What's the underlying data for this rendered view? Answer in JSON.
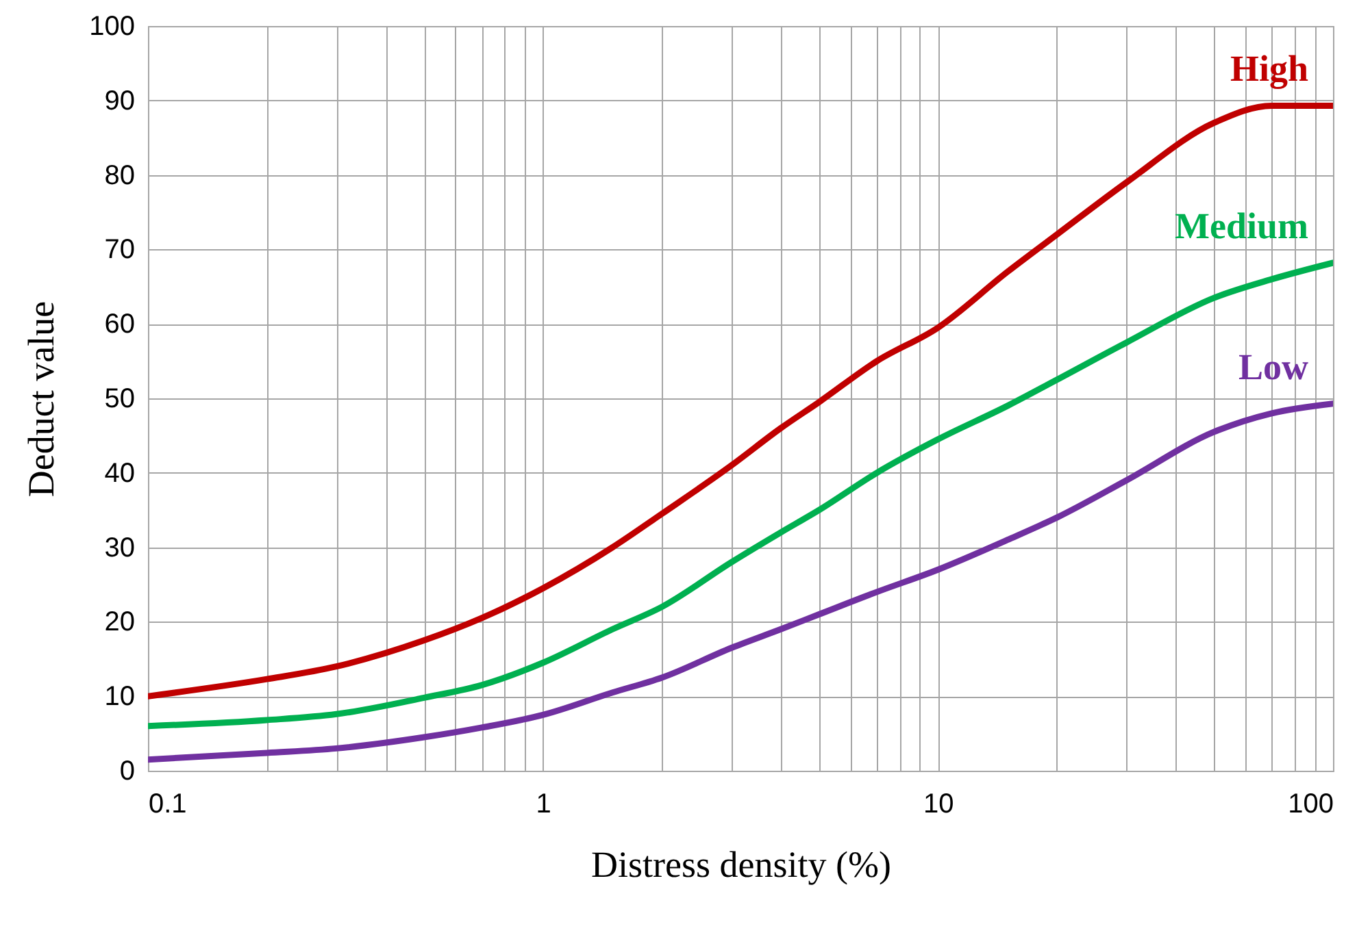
{
  "chart_data": {
    "type": "line",
    "xlabel": "Distress density (%)",
    "ylabel": "Deduct value",
    "log": "x",
    "grid": true,
    "line_style": "solid",
    "marker": "none",
    "xlim": [
      0.1,
      100
    ],
    "ylim": [
      0,
      100
    ],
    "xticks": [
      0.1,
      {
        "value": 0.2,
        "label": null
      },
      {
        "value": 0.3,
        "label": null
      },
      {
        "value": 0.4,
        "label": null
      },
      {
        "value": 0.5,
        "label": null
      },
      {
        "value": 0.6,
        "label": null
      },
      {
        "value": 0.7,
        "label": null
      },
      {
        "value": 0.8,
        "label": null
      },
      {
        "value": 0.9,
        "label": null
      },
      1,
      {
        "value": 2,
        "label": null
      },
      {
        "value": 3,
        "label": null
      },
      {
        "value": 4,
        "label": null
      },
      {
        "value": 5,
        "label": null
      },
      {
        "value": 6,
        "label": null
      },
      {
        "value": 7,
        "label": null
      },
      {
        "value": 8,
        "label": null
      },
      {
        "value": 9,
        "label": null
      },
      10,
      {
        "value": 20,
        "label": null
      },
      {
        "value": 30,
        "label": null
      },
      {
        "value": 40,
        "label": null
      },
      {
        "value": 50,
        "label": null
      },
      {
        "value": 60,
        "label": null
      },
      {
        "value": 70,
        "label": null
      },
      {
        "value": 80,
        "label": null
      },
      {
        "value": 90,
        "label": null
      },
      100
    ],
    "yticks": [
      0,
      10,
      20,
      30,
      40,
      50,
      60,
      70,
      80,
      90,
      100
    ],
    "x": [
      0.1,
      0.2,
      0.3,
      0.5,
      0.7,
      1,
      1.5,
      2,
      3,
      4,
      5,
      7,
      10,
      15,
      20,
      30,
      50,
      70,
      100
    ],
    "series": [
      {
        "name": "High",
        "color": "#c00000",
        "values": [
          10,
          12.3,
          14,
          17.5,
          20.5,
          24.5,
          30,
          34.5,
          41,
          46,
          49.5,
          55,
          59.5,
          67,
          72,
          79,
          87,
          89.3,
          89.3
        ]
      },
      {
        "name": "Medium",
        "color": "#00b050",
        "values": [
          6,
          6.8,
          7.6,
          9.8,
          11.5,
          14.5,
          19,
          22,
          28,
          32,
          35,
          40,
          44.5,
          49,
          52.5,
          57.5,
          63.5,
          66,
          68.2
        ]
      },
      {
        "name": "Low",
        "color": "#7030a0",
        "values": [
          1.5,
          2.4,
          3,
          4.5,
          5.8,
          7.5,
          10.5,
          12.5,
          16.5,
          19,
          21,
          24,
          27,
          31,
          34,
          39,
          45.5,
          48,
          49.3
        ]
      }
    ]
  }
}
